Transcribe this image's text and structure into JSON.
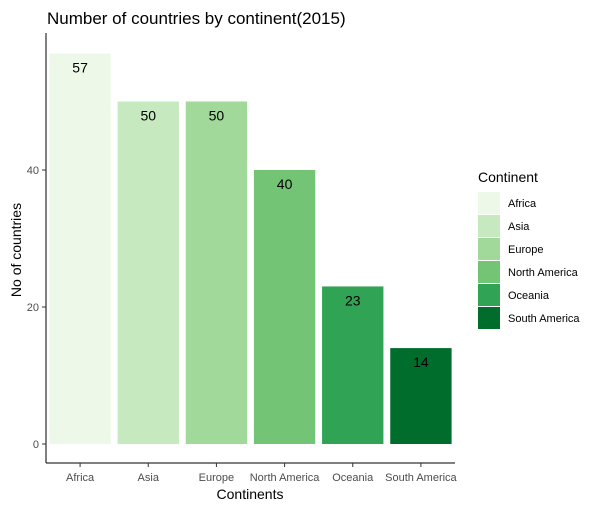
{
  "chart_data": {
    "type": "bar",
    "title": "Number of countries by continent(2015)",
    "xlabel": "Continents",
    "ylabel": "No of countries",
    "categories": [
      "Africa",
      "Asia",
      "Europe",
      "North America",
      "Oceania",
      "South America"
    ],
    "values": [
      57,
      50,
      50,
      40,
      23,
      14
    ],
    "colors": [
      "#edf8e9",
      "#c7e9c0",
      "#a1d99b",
      "#74c476",
      "#31a354",
      "#006d2c"
    ],
    "ylim": [
      0,
      60
    ],
    "yticks": [
      0,
      20,
      40
    ],
    "grid": false,
    "legend": {
      "title": "Continent",
      "placement": "right",
      "entries": [
        "Africa",
        "Asia",
        "Europe",
        "North America",
        "Oceania",
        "South America"
      ]
    }
  }
}
